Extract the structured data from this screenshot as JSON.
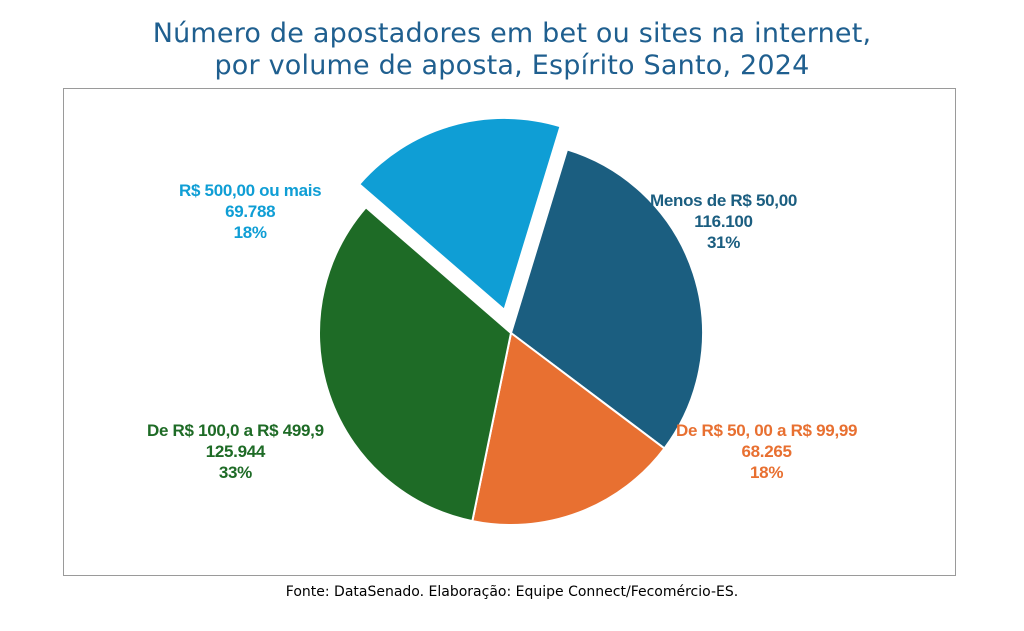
{
  "title_line1": "Número de apostadores em bet ou sites na internet,",
  "title_line2": "por volume de aposta, Espírito Santo, 2024",
  "source": "Fonte: DataSenado. Elaboração: Equipe Connect/Fecomércio-ES.",
  "chart_data": {
    "type": "pie",
    "title": "Número de apostadores em bet ou sites na internet, por volume de aposta, Espírito Santo, 2024",
    "slices": [
      {
        "label": "Menos de R$ 50,00",
        "value": 116100,
        "value_label": "116.100",
        "percent_label": "31%",
        "color": "#1b5e80",
        "exploded": false
      },
      {
        "label": "De R$ 50, 00 a R$ 99,99",
        "value": 68265,
        "value_label": "68.265",
        "percent_label": "18%",
        "color": "#e87031",
        "exploded": false
      },
      {
        "label": "De R$ 100,0 a R$ 499,9",
        "value": 125944,
        "value_label": "125.944",
        "percent_label": "33%",
        "color": "#1e6b26",
        "exploded": false
      },
      {
        "label": "R$ 500,00 ou mais",
        "value": 69788,
        "value_label": "69.788",
        "percent_label": "18%",
        "color": "#0f9ed5",
        "exploded": true
      }
    ]
  }
}
